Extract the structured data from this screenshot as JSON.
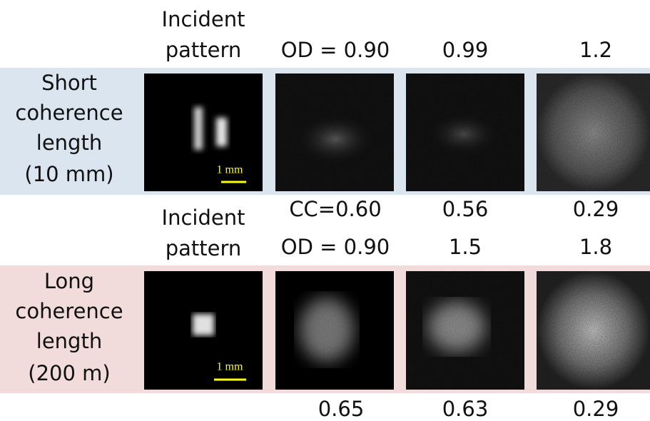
{
  "rows": [
    {
      "incident_header": [
        "Incident",
        "pattern"
      ],
      "od": [
        "OD = 0.90",
        "0.99",
        "1.2"
      ],
      "label": [
        "Short",
        "coherence",
        "length",
        "(10 mm)"
      ],
      "scale_bar": "1 mm",
      "cc": [
        "CC=0.60",
        "0.56",
        "0.29"
      ]
    },
    {
      "incident_header": [
        "Incident",
        "pattern"
      ],
      "od": [
        "OD = 0.90",
        "1.5",
        "1.8"
      ],
      "label": [
        "Long",
        "coherence",
        "length",
        "(200 m)"
      ],
      "scale_bar": "1 mm",
      "cc": [
        "0.65",
        "0.63",
        "0.29"
      ]
    }
  ]
}
